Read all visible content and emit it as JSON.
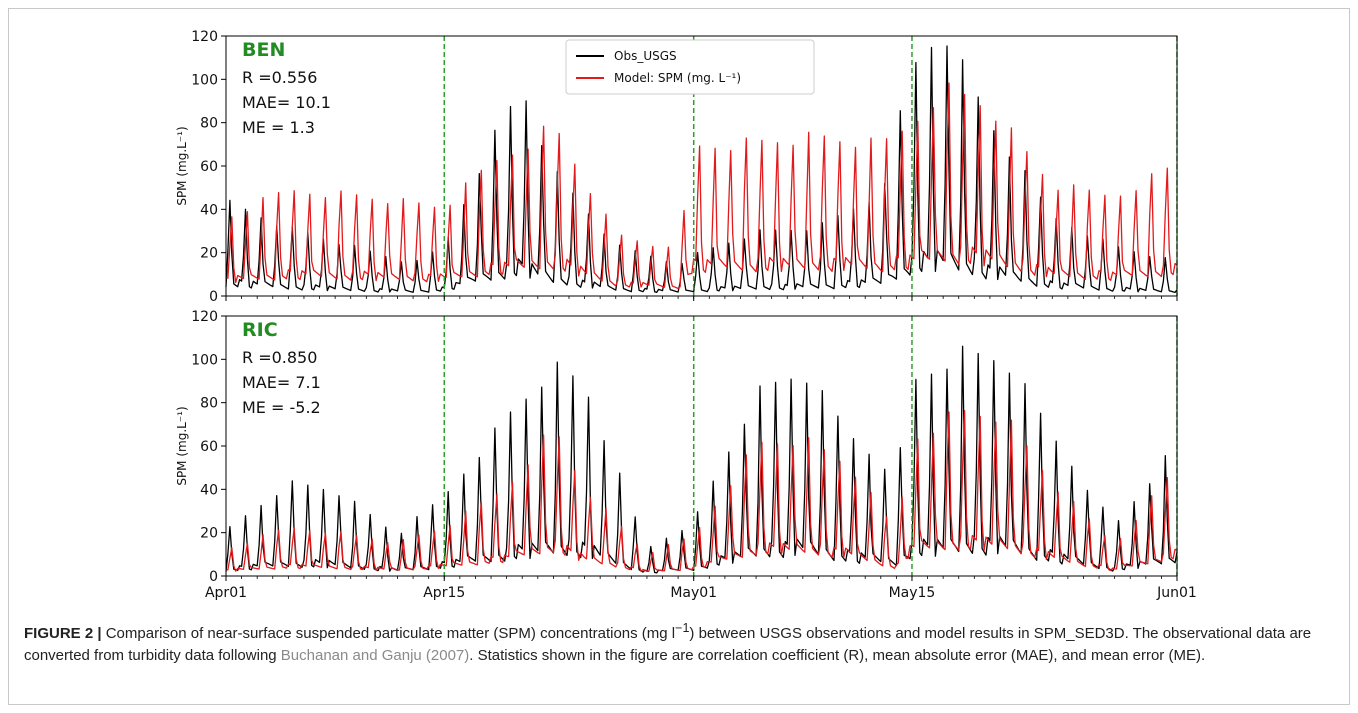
{
  "figure": {
    "caption_label": "FIGURE 2 |",
    "caption_part1": " Comparison of near-surface suspended particulate matter (SPM) concentrations (mg l",
    "caption_sup": "−1",
    "caption_part2": ") between USGS observations and model results in SPM_SED3D. The observational data are converted from turbidity data following ",
    "caption_ref": "Buchanan and Ganju (2007)",
    "caption_part3": ". Statistics shown in the figure are correlation coefficient (R), mean absolute error (MAE), and mean error (ME)."
  },
  "chart_data": [
    {
      "type": "line",
      "panel": "BEN",
      "stats": [
        "R =0.556",
        "MAE= 10.1",
        "ME =  1.3"
      ],
      "ylabel": "SPM (mg.L⁻¹)",
      "ylim": [
        0,
        120
      ],
      "yticks": [
        0,
        20,
        40,
        60,
        80,
        100,
        120
      ],
      "xlim": [
        "2000-04-01",
        "2000-06-01"
      ],
      "xticks": [
        "Apr01",
        "Apr15",
        "May01",
        "May15",
        "Jun01"
      ],
      "vlines": [
        "Apr15",
        "May01",
        "May15",
        "Jun01"
      ],
      "legend": {
        "placement": "top-center",
        "entries": [
          "Obs_USGS",
          "Model: SPM (mg. L⁻¹)"
        ]
      },
      "series": [
        {
          "name": "Obs_USGS",
          "color": "#000000",
          "x": [
            "2000-04-01",
            "2000-04-05",
            "2000-04-09",
            "2000-04-13",
            "2000-04-15",
            "2000-04-18",
            "2000-04-20",
            "2000-04-22",
            "2000-04-26",
            "2000-04-30",
            "2000-05-01",
            "2000-05-05",
            "2000-05-09",
            "2000-05-13",
            "2000-05-15",
            "2000-05-17",
            "2000-05-20",
            "2000-05-24",
            "2000-05-28",
            "2000-06-01"
          ],
          "y": [
            42,
            30,
            22,
            14,
            22,
            68,
            92,
            55,
            22,
            14,
            18,
            28,
            30,
            45,
            100,
            118,
            76,
            35,
            22,
            15
          ]
        },
        {
          "name": "Model: SPM (mg. L⁻¹)",
          "color": "#e31a1c",
          "x": [
            "2000-04-01",
            "2000-04-05",
            "2000-04-09",
            "2000-04-13",
            "2000-04-15",
            "2000-04-18",
            "2000-04-20",
            "2000-04-22",
            "2000-04-26",
            "2000-04-30",
            "2000-05-01",
            "2000-05-05",
            "2000-05-09",
            "2000-05-13",
            "2000-05-15",
            "2000-05-17",
            "2000-05-20",
            "2000-05-24",
            "2000-05-28",
            "2000-06-01"
          ],
          "y": [
            35,
            48,
            46,
            42,
            40,
            60,
            68,
            78,
            28,
            20,
            68,
            70,
            72,
            68,
            78,
            95,
            86,
            50,
            45,
            60
          ]
        }
      ]
    },
    {
      "type": "line",
      "panel": "RIC",
      "stats": [
        "R =0.850",
        "MAE=  7.1",
        "ME = -5.2"
      ],
      "ylabel": "SPM (mg.L⁻¹)",
      "ylim": [
        0,
        120
      ],
      "yticks": [
        0,
        20,
        40,
        60,
        80,
        100,
        120
      ],
      "xlim": [
        "2000-04-01",
        "2000-06-01"
      ],
      "xticks": [
        "Apr01",
        "Apr15",
        "May01",
        "May15",
        "Jun01"
      ],
      "vlines": [
        "Apr15",
        "May01",
        "May15",
        "Jun01"
      ],
      "series": [
        {
          "name": "Obs_USGS",
          "color": "#000000",
          "x": [
            "2000-04-01",
            "2000-04-05",
            "2000-04-08",
            "2000-04-12",
            "2000-04-15",
            "2000-04-19",
            "2000-04-22",
            "2000-04-24",
            "2000-04-28",
            "2000-05-01",
            "2000-05-05",
            "2000-05-08",
            "2000-05-11",
            "2000-05-14",
            "2000-05-15",
            "2000-05-18",
            "2000-05-21",
            "2000-05-24",
            "2000-05-28",
            "2000-06-01"
          ],
          "y": [
            20,
            41,
            38,
            18,
            35,
            70,
            92,
            84,
            12,
            24,
            80,
            90,
            62,
            45,
            85,
            98,
            95,
            62,
            22,
            58
          ]
        },
        {
          "name": "Model: SPM (mg. L⁻¹)",
          "color": "#e31a1c",
          "x": [
            "2000-04-01",
            "2000-04-05",
            "2000-04-08",
            "2000-04-12",
            "2000-04-15",
            "2000-04-19",
            "2000-04-22",
            "2000-04-24",
            "2000-04-28",
            "2000-05-01",
            "2000-05-05",
            "2000-05-08",
            "2000-05-11",
            "2000-05-14",
            "2000-05-15",
            "2000-05-18",
            "2000-05-21",
            "2000-05-24",
            "2000-05-28",
            "2000-06-01"
          ],
          "y": [
            12,
            22,
            20,
            15,
            22,
            40,
            68,
            40,
            10,
            18,
            60,
            62,
            50,
            20,
            62,
            75,
            72,
            42,
            14,
            50
          ]
        }
      ]
    }
  ]
}
